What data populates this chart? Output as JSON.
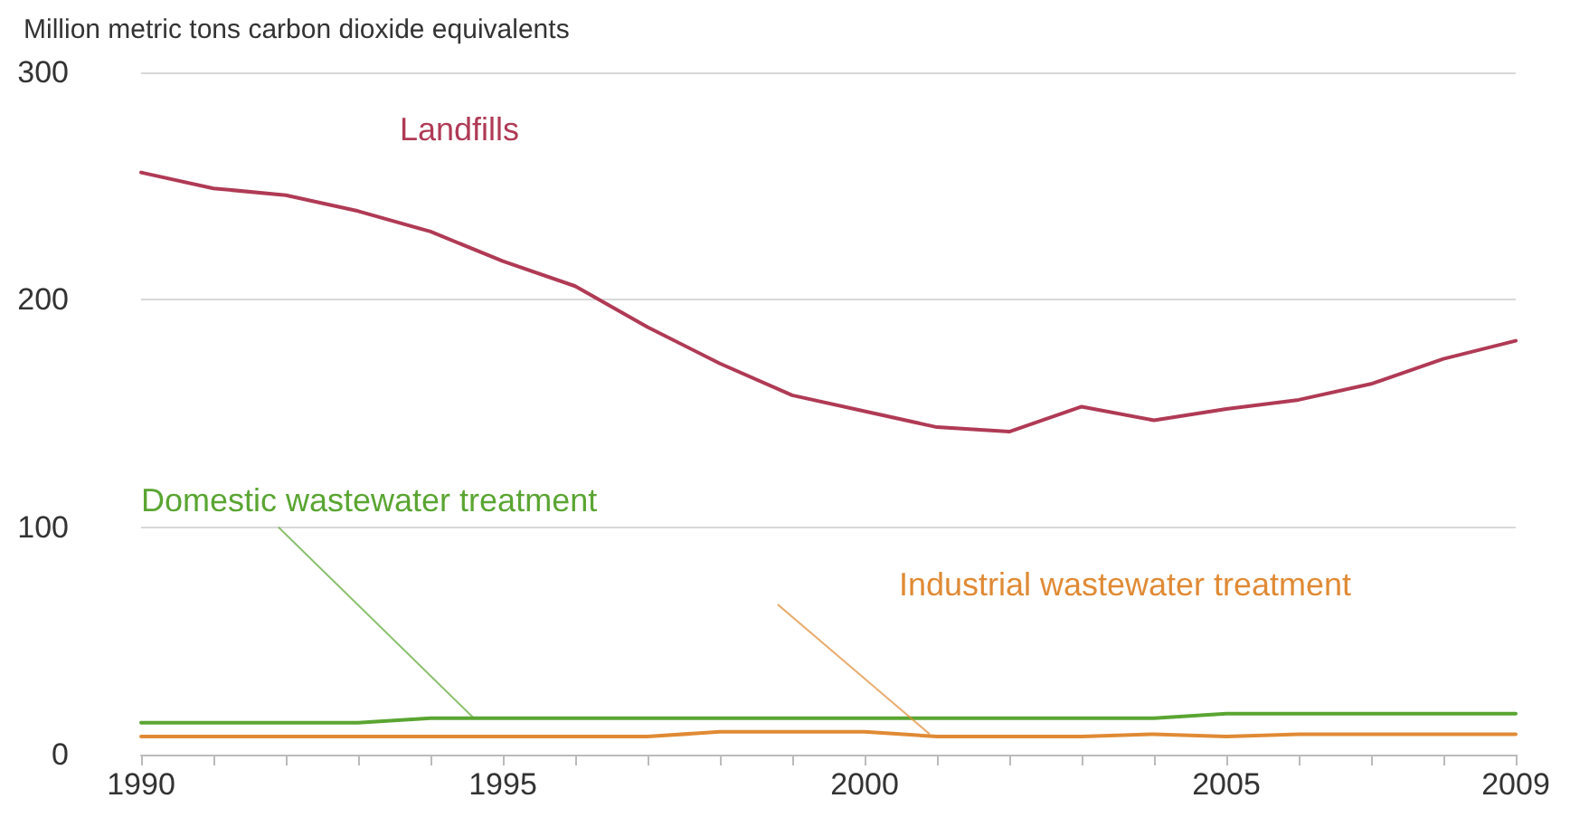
{
  "chart_data": {
    "type": "line",
    "ylabel": "Million metric tons carbon dioxide equivalents",
    "x": [
      1990,
      1991,
      1992,
      1993,
      1994,
      1995,
      1996,
      1997,
      1998,
      1999,
      2000,
      2001,
      2002,
      2003,
      2004,
      2005,
      2006,
      2007,
      2008,
      2009
    ],
    "series": [
      {
        "name": "Landfills",
        "color": "#b03a55",
        "values": [
          256,
          249,
          246,
          239,
          230,
          217,
          206,
          188,
          172,
          158,
          151,
          144,
          142,
          153,
          147,
          152,
          156,
          163,
          174,
          182
        ]
      },
      {
        "name": "Domestic wastewater treatment",
        "color": "#5aa532",
        "values": [
          14,
          14,
          14,
          14,
          16,
          16,
          16,
          16,
          16,
          16,
          16,
          16,
          16,
          16,
          16,
          18,
          18,
          18,
          18,
          18
        ]
      },
      {
        "name": "Industrial wastewater treatment",
        "color": "#e08a35",
        "values": [
          8,
          8,
          8,
          8,
          8,
          8,
          8,
          8,
          10,
          10,
          10,
          8,
          8,
          8,
          9,
          8,
          9,
          9,
          9,
          9
        ]
      }
    ],
    "xlim": [
      1990,
      2009
    ],
    "xticks": [
      1990,
      {
        "value": 1991,
        "label": null
      },
      {
        "value": 1992,
        "label": null
      },
      {
        "value": 1993,
        "label": null
      },
      {
        "value": 1994,
        "label": null
      },
      1995,
      {
        "value": 1996,
        "label": null
      },
      {
        "value": 1997,
        "label": null
      },
      {
        "value": 1998,
        "label": null
      },
      {
        "value": 1999,
        "label": null
      },
      2000,
      {
        "value": 2001,
        "label": null
      },
      {
        "value": 2002,
        "label": null
      },
      {
        "value": 2003,
        "label": null
      },
      {
        "value": 2004,
        "label": null
      },
      2005,
      {
        "value": 2006,
        "label": null
      },
      {
        "value": 2007,
        "label": null
      },
      {
        "value": 2008,
        "label": null
      },
      2009
    ],
    "ylim": [
      0,
      300
    ],
    "yticks": [
      0,
      100,
      200,
      300
    ],
    "grid": "y",
    "legend": false,
    "marker": "none",
    "line_style": "solid"
  }
}
